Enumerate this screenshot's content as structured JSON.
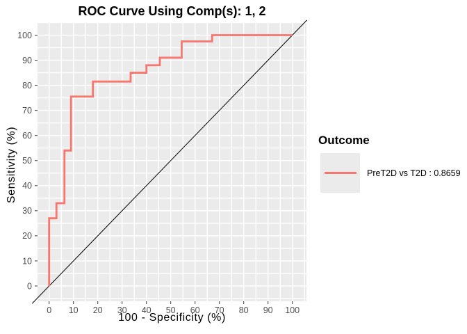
{
  "title": "ROC Curve Using Comp(s): 1, 2",
  "axes": {
    "x": {
      "label": "100 - Specificity (%)",
      "ticks": [
        0,
        10,
        20,
        30,
        40,
        50,
        60,
        70,
        80,
        90,
        100
      ]
    },
    "y": {
      "label": "Sensitivity (%)",
      "ticks": [
        0,
        10,
        20,
        30,
        40,
        50,
        60,
        70,
        80,
        90,
        100
      ]
    }
  },
  "legend": {
    "title": "Outcome",
    "entries": [
      {
        "label": "PreT2D vs T2D : 0.8659",
        "auc": 0.8659,
        "color": "#F8766D"
      }
    ]
  },
  "colors": {
    "roc_line": "#F8766D",
    "panel_bg": "#EBEBEB",
    "gridline": "#FFFFFF",
    "tick_mark": "#333333",
    "axis_text": "#4D4D4D",
    "diagonal": "#000000",
    "page_bg": "#FFFFFF",
    "legend_key_bg": "#EBEBEB"
  },
  "chart_data": {
    "type": "line",
    "title": "ROC Curve Using Comp(s): 1, 2",
    "xlabel": "100 - Specificity (%)",
    "ylabel": "Sensitivity (%)",
    "xlim": [
      -5,
      105
    ],
    "ylim": [
      -5,
      105
    ],
    "grid": true,
    "minor_grid_step": 5,
    "legend_position": "right",
    "series": [
      {
        "name": "PreT2D vs T2D : 0.8659",
        "type": "step",
        "color": "#F8766D",
        "auc": 0.8659,
        "points": [
          [
            0,
            0
          ],
          [
            0,
            27
          ],
          [
            3,
            27
          ],
          [
            3,
            33
          ],
          [
            6.3,
            33
          ],
          [
            6.3,
            54
          ],
          [
            9,
            54
          ],
          [
            9,
            75.5
          ],
          [
            18,
            75.5
          ],
          [
            18,
            81.5
          ],
          [
            33.5,
            81.5
          ],
          [
            33.5,
            85
          ],
          [
            40,
            85
          ],
          [
            40,
            88
          ],
          [
            45.5,
            88
          ],
          [
            45.5,
            91
          ],
          [
            54.5,
            91
          ],
          [
            54.5,
            97.5
          ],
          [
            67,
            97.5
          ],
          [
            67,
            100
          ],
          [
            100,
            100
          ]
        ]
      },
      {
        "name": "chance-diagonal",
        "type": "reference-line",
        "color": "#000000",
        "points": [
          [
            -7,
            -7
          ],
          [
            106,
            106
          ]
        ]
      }
    ]
  }
}
